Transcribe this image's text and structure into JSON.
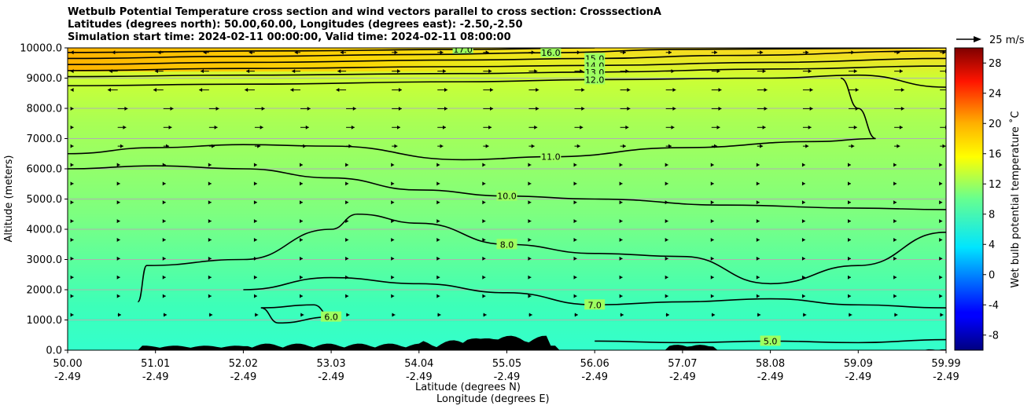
{
  "title": {
    "line1": "Wetbulb Potential Temperature cross section and wind vectors parallel to cross section: CrosssectionA",
    "line2": "Latitudes (degrees north): 50.00,60.00, Longitudes (degrees east): -2.50,-2.50",
    "line3": "Simulation start time: 2024-02-11 00:00:00, Valid time: 2024-02-11 08:00:00"
  },
  "quiver_key": "25 m/s",
  "chart_data": {
    "type": "heatmap",
    "ylabel": "Altitude (meters)",
    "xlabel_lat": "Latitude (degrees N)",
    "xlabel_lon": "Longitude (degrees E)",
    "colorbar_label": "Wet bulb potential temperature ˚C",
    "ylim": [
      0,
      10000
    ],
    "clim": [
      -10,
      30
    ],
    "y_ticks": [
      "0.0",
      "1000.0",
      "2000.0",
      "3000.0",
      "4000.0",
      "5000.0",
      "6000.0",
      "7000.0",
      "8000.0",
      "9000.0",
      "10000.0"
    ],
    "x_ticks": [
      {
        "lat": "50.00",
        "lon": "-2.49"
      },
      {
        "lat": "51.01",
        "lon": "-2.49"
      },
      {
        "lat": "52.02",
        "lon": "-2.49"
      },
      {
        "lat": "53.03",
        "lon": "-2.49"
      },
      {
        "lat": "54.04",
        "lon": "-2.49"
      },
      {
        "lat": "55.05",
        "lon": "-2.49"
      },
      {
        "lat": "56.06",
        "lon": "-2.49"
      },
      {
        "lat": "57.07",
        "lon": "-2.49"
      },
      {
        "lat": "58.08",
        "lon": "-2.49"
      },
      {
        "lat": "59.09",
        "lon": "-2.49"
      },
      {
        "lat": "59.99",
        "lon": "-2.49"
      }
    ],
    "colorbar_ticks": [
      "-8",
      "-4",
      "0",
      "4",
      "8",
      "12",
      "16",
      "20",
      "24",
      "28"
    ],
    "colorbar_values": [
      -8,
      -4,
      0,
      4,
      8,
      12,
      16,
      20,
      24,
      28
    ],
    "contours": [
      {
        "label": "17.0",
        "level": 17,
        "points": [
          [
            0,
            9850
          ],
          [
            0.25,
            9900
          ],
          [
            0.45,
            9950
          ],
          [
            0.6,
            10000
          ]
        ]
      },
      {
        "label": "16.0",
        "level": 16,
        "points": [
          [
            0,
            9650
          ],
          [
            0.2,
            9720
          ],
          [
            0.4,
            9780
          ],
          [
            0.55,
            9840
          ],
          [
            0.7,
            9950
          ],
          [
            1,
            10000
          ]
        ]
      },
      {
        "label": "15.0",
        "level": 15,
        "points": [
          [
            0,
            9450
          ],
          [
            0.2,
            9520
          ],
          [
            0.45,
            9600
          ],
          [
            0.6,
            9650
          ],
          [
            0.75,
            9750
          ],
          [
            1,
            9900
          ]
        ]
      },
      {
        "label": "14.0",
        "level": 14,
        "points": [
          [
            0,
            9250
          ],
          [
            0.2,
            9320
          ],
          [
            0.45,
            9380
          ],
          [
            0.6,
            9420
          ],
          [
            0.8,
            9520
          ],
          [
            1,
            9650
          ]
        ]
      },
      {
        "label": "13.0",
        "level": 13,
        "points": [
          [
            0,
            9050
          ],
          [
            0.2,
            9100
          ],
          [
            0.45,
            9150
          ],
          [
            0.6,
            9200
          ],
          [
            0.8,
            9300
          ],
          [
            1,
            9400
          ]
        ]
      },
      {
        "label": "12.0",
        "level": 12,
        "points": [
          [
            0,
            8750
          ],
          [
            0.2,
            8800
          ],
          [
            0.45,
            8880
          ],
          [
            0.6,
            8950
          ],
          [
            0.8,
            9000
          ],
          [
            0.9,
            9100
          ],
          [
            1,
            8700
          ]
        ]
      },
      {
        "label": "11.0",
        "level": 11,
        "points": [
          [
            0,
            6500
          ],
          [
            0.1,
            6700
          ],
          [
            0.2,
            6800
          ],
          [
            0.3,
            6750
          ],
          [
            0.45,
            6300
          ],
          [
            0.55,
            6400
          ],
          [
            0.7,
            6700
          ],
          [
            0.85,
            6900
          ],
          [
            0.92,
            7000
          ],
          [
            0.9,
            8000
          ],
          [
            0.88,
            9000
          ]
        ]
      },
      {
        "label": "10.0",
        "level": 10,
        "points": [
          [
            0,
            6000
          ],
          [
            0.1,
            6100
          ],
          [
            0.2,
            6000
          ],
          [
            0.3,
            5700
          ],
          [
            0.4,
            5300
          ],
          [
            0.5,
            5100
          ],
          [
            0.6,
            5000
          ],
          [
            0.75,
            4800
          ],
          [
            0.9,
            4700
          ],
          [
            1,
            4650
          ]
        ]
      },
      {
        "label": "8.0",
        "level": 8,
        "points": [
          [
            0.08,
            1600
          ],
          [
            0.09,
            2800
          ],
          [
            0.2,
            3000
          ],
          [
            0.3,
            4000
          ],
          [
            0.33,
            4500
          ],
          [
            0.4,
            4200
          ],
          [
            0.5,
            3500
          ],
          [
            0.6,
            3200
          ],
          [
            0.7,
            3100
          ],
          [
            0.8,
            2200
          ],
          [
            0.9,
            2800
          ],
          [
            1,
            3900
          ]
        ]
      },
      {
        "label": "7.0",
        "level": 7,
        "points": [
          [
            0.2,
            2000
          ],
          [
            0.3,
            2400
          ],
          [
            0.4,
            2200
          ],
          [
            0.5,
            1900
          ],
          [
            0.6,
            1500
          ],
          [
            0.7,
            1600
          ],
          [
            0.8,
            1700
          ],
          [
            0.9,
            1500
          ],
          [
            1,
            1400
          ]
        ]
      },
      {
        "label": "6.0",
        "level": 6,
        "points": [
          [
            0.22,
            1400
          ],
          [
            0.28,
            1500
          ],
          [
            0.3,
            1100
          ],
          [
            0.24,
            900
          ],
          [
            0.22,
            1400
          ]
        ]
      },
      {
        "label": "5.0",
        "level": 5,
        "points": [
          [
            0.6,
            300
          ],
          [
            0.7,
            250
          ],
          [
            0.8,
            300
          ],
          [
            0.9,
            250
          ],
          [
            1,
            350
          ]
        ]
      }
    ]
  }
}
